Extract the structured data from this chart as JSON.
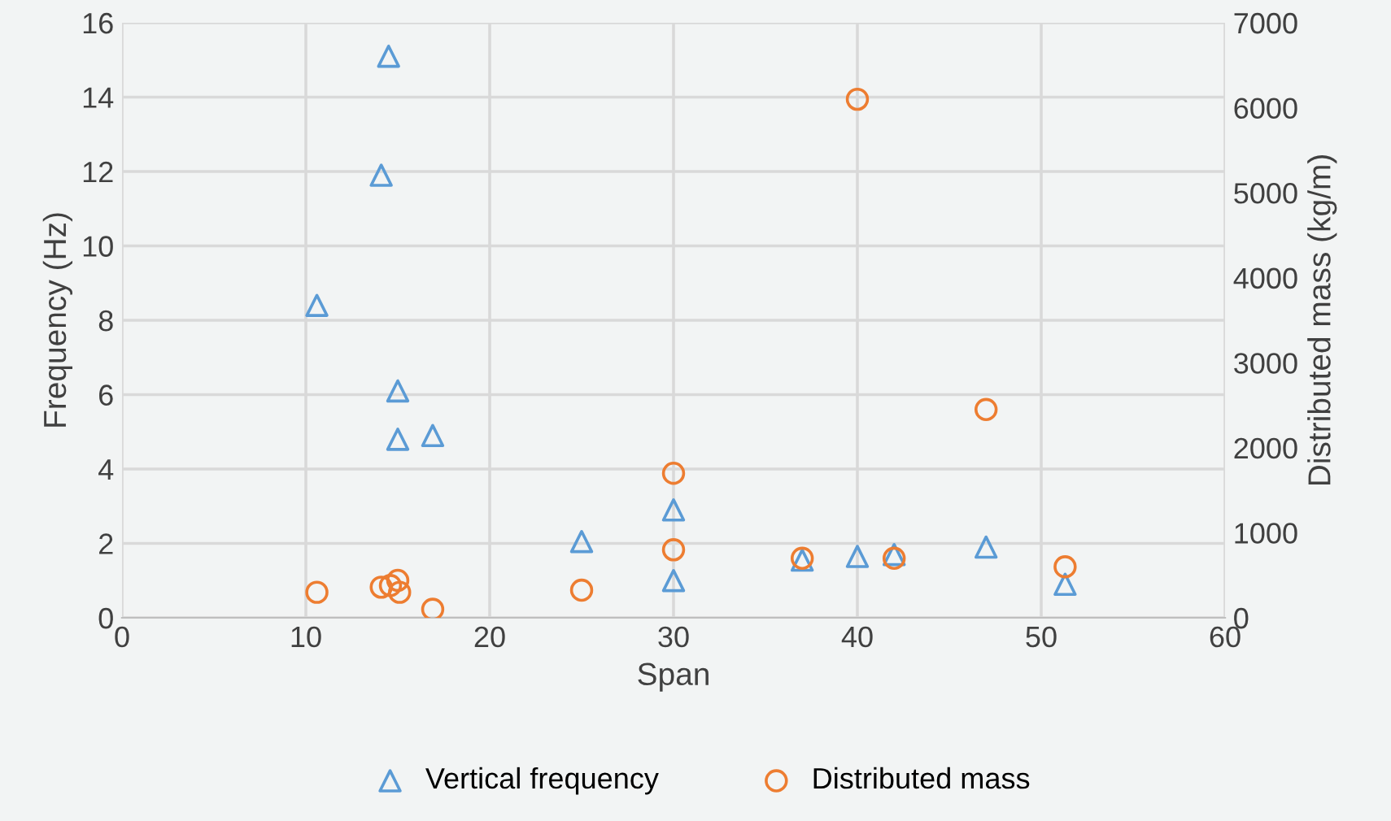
{
  "chart_data": {
    "type": "scatter",
    "xlabel": "Span",
    "ylabel": "Frequency (Hz)",
    "y2label": "Distributed mass (kg/m)",
    "xlim": [
      0,
      60
    ],
    "xticks": [
      0,
      10,
      20,
      30,
      40,
      50,
      60
    ],
    "ylim": [
      0,
      16
    ],
    "yticks": [
      0,
      2,
      4,
      6,
      8,
      10,
      12,
      14,
      16
    ],
    "y2lim": [
      0,
      7000
    ],
    "y2ticks": [
      0,
      1000,
      2000,
      3000,
      4000,
      5000,
      6000,
      7000
    ],
    "grid": true,
    "legend": "bottom",
    "series": [
      {
        "name": "Vertical frequency",
        "color": "#5b9bd5",
        "marker": "triangle",
        "x": [
          14.5,
          14.1,
          10.6,
          15.0,
          15.0,
          16.9,
          25,
          30,
          30,
          37,
          40,
          42,
          47,
          51.3
        ],
        "values": [
          15.1,
          11.9,
          8.4,
          6.1,
          4.8,
          4.9,
          2.05,
          2.9,
          1.0,
          1.55,
          1.65,
          1.7,
          1.9,
          0.9
        ]
      },
      {
        "name": "Distributed mass",
        "color": "#ed7d31",
        "marker": "circle",
        "axis": "y2",
        "x": [
          10.6,
          14.1,
          14.6,
          15.0,
          15.1,
          16.9,
          25,
          30,
          30,
          37,
          40,
          42,
          47,
          51.3
        ],
        "values": [
          300,
          360,
          380,
          440,
          300,
          100,
          325,
          1700,
          800,
          700,
          6100,
          700,
          2450,
          600
        ]
      }
    ]
  }
}
